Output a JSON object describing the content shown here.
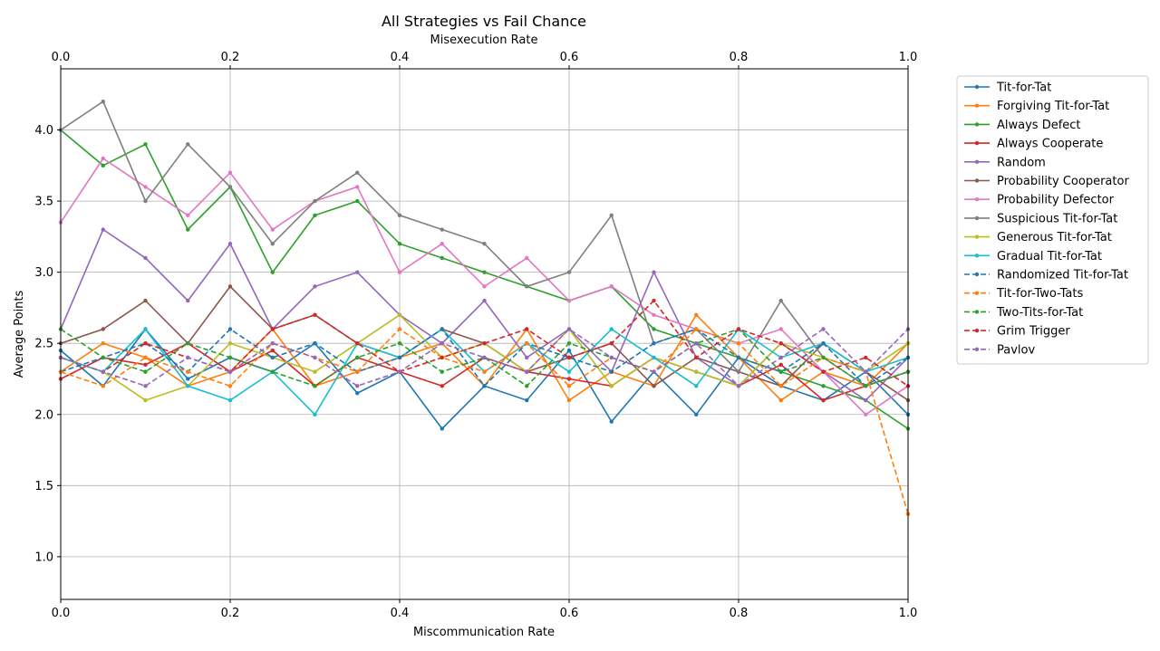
{
  "chart_data": {
    "type": "line",
    "title": "All Strategies vs Fail Chance",
    "xlabel": "Miscommunication Rate",
    "x2label": "Misexecution Rate",
    "ylabel": "Average Points",
    "xlim": [
      0.0,
      1.0
    ],
    "ylim": [
      0.7,
      4.43
    ],
    "xticks": [
      "0.0",
      "0.2",
      "0.4",
      "0.6",
      "0.8",
      "1.0"
    ],
    "x2ticks": [
      "0.0",
      "0.2",
      "0.4",
      "0.6",
      "0.8",
      "1.0"
    ],
    "yticks": [
      "1.0",
      "1.5",
      "2.0",
      "2.5",
      "3.0",
      "3.5",
      "4.0"
    ],
    "grid": true,
    "legend_position": "outside-right",
    "x": [
      0.0,
      0.05,
      0.1,
      0.15,
      0.2,
      0.25,
      0.3,
      0.35,
      0.4,
      0.45,
      0.5,
      0.55,
      0.6,
      0.65,
      0.7,
      0.75,
      0.8,
      0.85,
      0.9,
      0.95,
      1.0
    ],
    "series": [
      {
        "name": "Tit-for-Tat",
        "color": "#1f77b4",
        "style": "solid",
        "values": [
          2.45,
          2.2,
          2.6,
          2.25,
          2.4,
          2.3,
          2.5,
          2.15,
          2.3,
          1.9,
          2.2,
          2.1,
          2.45,
          1.95,
          2.3,
          2.0,
          2.4,
          2.2,
          2.1,
          2.3,
          2.0
        ]
      },
      {
        "name": "Forgiving Tit-for-Tat",
        "color": "#ff7f0e",
        "style": "solid",
        "values": [
          2.3,
          2.5,
          2.4,
          2.2,
          2.3,
          2.6,
          2.2,
          2.3,
          2.4,
          2.5,
          2.2,
          2.6,
          2.1,
          2.3,
          2.2,
          2.7,
          2.4,
          2.1,
          2.3,
          2.2,
          2.5
        ]
      },
      {
        "name": "Always Defect",
        "color": "#2ca02c",
        "style": "solid",
        "values": [
          4.0,
          3.75,
          3.9,
          3.3,
          3.6,
          3.0,
          3.4,
          3.5,
          3.2,
          3.1,
          3.0,
          2.9,
          2.8,
          2.9,
          2.6,
          2.5,
          2.4,
          2.3,
          2.2,
          2.1,
          1.9
        ]
      },
      {
        "name": "Always Cooperate",
        "color": "#d62728",
        "style": "solid",
        "values": [
          2.25,
          2.4,
          2.35,
          2.5,
          2.3,
          2.45,
          2.2,
          2.4,
          2.3,
          2.2,
          2.4,
          2.3,
          2.25,
          2.2,
          2.4,
          2.3,
          2.2,
          2.35,
          2.1,
          2.2,
          2.3
        ]
      },
      {
        "name": "Random",
        "color": "#9467bd",
        "style": "solid",
        "values": [
          2.6,
          3.3,
          3.1,
          2.8,
          3.2,
          2.6,
          2.9,
          3.0,
          2.7,
          2.5,
          2.8,
          2.4,
          2.6,
          2.3,
          3.0,
          2.4,
          2.2,
          2.5,
          2.3,
          2.1,
          2.4
        ]
      },
      {
        "name": "Probability Cooperator",
        "color": "#8c564b",
        "style": "solid",
        "values": [
          2.5,
          2.6,
          2.8,
          2.5,
          2.9,
          2.6,
          2.7,
          2.5,
          2.4,
          2.6,
          2.5,
          2.3,
          2.4,
          2.5,
          2.2,
          2.4,
          2.3,
          2.2,
          2.5,
          2.3,
          2.1
        ]
      },
      {
        "name": "Probability Defector",
        "color": "#e377c2",
        "style": "solid",
        "values": [
          3.35,
          3.8,
          3.6,
          3.4,
          3.7,
          3.3,
          3.5,
          3.6,
          3.0,
          3.2,
          2.9,
          3.1,
          2.8,
          2.9,
          2.7,
          2.6,
          2.5,
          2.6,
          2.3,
          2.0,
          2.2
        ]
      },
      {
        "name": "Suspicious Tit-for-Tat",
        "color": "#7f7f7f",
        "style": "solid",
        "values": [
          4.0,
          4.2,
          3.5,
          3.9,
          3.6,
          3.2,
          3.5,
          3.7,
          3.4,
          3.3,
          3.2,
          2.9,
          3.0,
          3.4,
          2.5,
          2.6,
          2.3,
          2.8,
          2.4,
          2.2,
          2.3
        ]
      },
      {
        "name": "Generous Tit-for-Tat",
        "color": "#bcbd22",
        "style": "solid",
        "values": [
          2.4,
          2.3,
          2.1,
          2.2,
          2.5,
          2.4,
          2.3,
          2.5,
          2.7,
          2.4,
          2.5,
          2.3,
          2.6,
          2.2,
          2.4,
          2.3,
          2.2,
          2.5,
          2.4,
          2.3,
          2.5
        ]
      },
      {
        "name": "Gradual Tit-for-Tat",
        "color": "#17becf",
        "style": "solid",
        "values": [
          2.4,
          2.3,
          2.6,
          2.2,
          2.1,
          2.3,
          2.0,
          2.5,
          2.4,
          2.6,
          2.3,
          2.5,
          2.3,
          2.6,
          2.4,
          2.2,
          2.6,
          2.4,
          2.5,
          2.3,
          2.4
        ]
      },
      {
        "name": "Randomized Tit-for-Tat",
        "color": "#1f77b4",
        "style": "dashed",
        "values": [
          2.3,
          2.4,
          2.5,
          2.3,
          2.6,
          2.4,
          2.5,
          2.3,
          2.4,
          2.6,
          2.2,
          2.5,
          2.4,
          2.3,
          2.5,
          2.6,
          2.4,
          2.3,
          2.5,
          2.2,
          2.4
        ]
      },
      {
        "name": "Tit-for-Two-Tats",
        "color": "#ff7f0e",
        "style": "dashed",
        "values": [
          2.3,
          2.2,
          2.4,
          2.3,
          2.2,
          2.5,
          2.4,
          2.3,
          2.6,
          2.4,
          2.3,
          2.5,
          2.2,
          2.4,
          2.3,
          2.6,
          2.5,
          2.2,
          2.4,
          2.3,
          1.3
        ]
      },
      {
        "name": "Two-Tits-for-Tat",
        "color": "#2ca02c",
        "style": "dashed",
        "values": [
          2.6,
          2.4,
          2.3,
          2.5,
          2.4,
          2.3,
          2.2,
          2.4,
          2.5,
          2.3,
          2.4,
          2.2,
          2.5,
          2.4,
          2.3,
          2.5,
          2.6,
          2.3,
          2.4,
          2.2,
          2.3
        ]
      },
      {
        "name": "Grim Trigger",
        "color": "#d62728",
        "style": "dashed",
        "values": [
          2.4,
          2.3,
          2.5,
          2.4,
          2.3,
          2.6,
          2.7,
          2.5,
          2.3,
          2.4,
          2.5,
          2.6,
          2.4,
          2.5,
          2.8,
          2.4,
          2.6,
          2.5,
          2.3,
          2.4,
          2.2
        ]
      },
      {
        "name": "Pavlov",
        "color": "#9467bd",
        "style": "dashed",
        "values": [
          2.4,
          2.3,
          2.2,
          2.4,
          2.3,
          2.5,
          2.4,
          2.2,
          2.3,
          2.5,
          2.4,
          2.3,
          2.6,
          2.4,
          2.3,
          2.5,
          2.2,
          2.4,
          2.6,
          2.3,
          2.6
        ]
      }
    ]
  }
}
